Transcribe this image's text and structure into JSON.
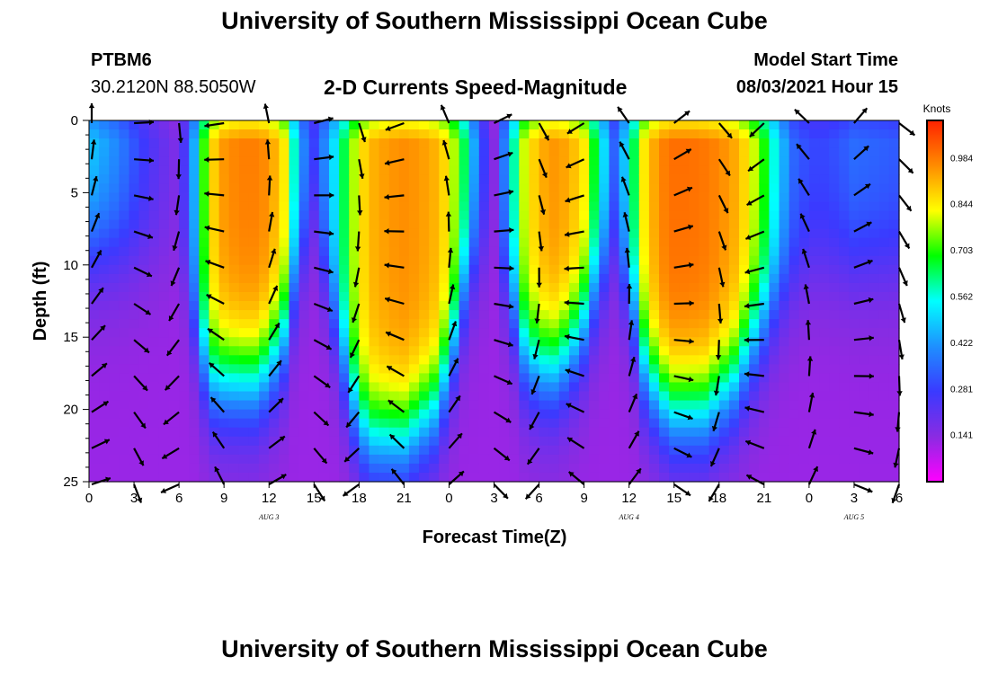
{
  "header": {
    "title": "University of Southern Mississippi Ocean Cube",
    "station_id": "PTBM6",
    "station_coords": "30.2120N  88.5050W",
    "plot_title": "2-D Currents Speed-Magnitude",
    "model_start_label": "Model Start Time",
    "model_start_value": "08/03/2021 Hour 15"
  },
  "footer": {
    "title": "University of Southern Mississippi Ocean Cube"
  },
  "chart_data": {
    "type": "heatmap",
    "title": "2-D Currents Speed-Magnitude",
    "xlabel": "Forecast Time(Z)",
    "ylabel": "Depth (ft)",
    "x_ticks": [
      "0",
      "3",
      "6",
      "9",
      "12",
      "15",
      "18",
      "21",
      "0",
      "3",
      "6",
      "9",
      "12",
      "15",
      "18",
      "21",
      "0",
      "3",
      "6"
    ],
    "x_range_hours": [
      0,
      54
    ],
    "date_labels": [
      {
        "label": "AUG 3",
        "hour": 12
      },
      {
        "label": "AUG 4",
        "hour": 36
      },
      {
        "label": "AUG 5",
        "hour": 51
      }
    ],
    "y_ticks": [
      "0",
      "5",
      "10",
      "15",
      "20",
      "25"
    ],
    "y_range_ft": [
      0,
      25
    ],
    "colorbar": {
      "unit": "Knots",
      "range": [
        0,
        1.1
      ],
      "tick_labels": [
        "0.984",
        "0.844",
        "0.703",
        "0.562",
        "0.422",
        "0.281",
        "0.141"
      ],
      "tick_values": [
        0.984,
        0.844,
        0.703,
        0.562,
        0.422,
        0.281,
        0.141
      ],
      "colors": [
        "#ff00ff",
        "#8a2be2",
        "#3a3aff",
        "#1e90ff",
        "#00ffff",
        "#00ff00",
        "#ffff00",
        "#ff8c00",
        "#ff2200"
      ]
    },
    "time_profile_hours": [
      0,
      2,
      4,
      6,
      7,
      8,
      9,
      10,
      11,
      12,
      13,
      14,
      15,
      16,
      17,
      18,
      19,
      20,
      21,
      22,
      23,
      24,
      25,
      26,
      27,
      28,
      29,
      30,
      31,
      32,
      33,
      34,
      35,
      36,
      37,
      38,
      39,
      40,
      41,
      42,
      43,
      44,
      45,
      46,
      47,
      48,
      49,
      50,
      51,
      52,
      53,
      54
    ],
    "surface_speed_knots": [
      0.5,
      0.4,
      0.25,
      0.15,
      0.45,
      0.85,
      0.95,
      0.98,
      0.98,
      0.96,
      0.85,
      0.45,
      0.3,
      0.45,
      0.65,
      0.85,
      0.92,
      0.95,
      0.96,
      0.95,
      0.92,
      0.85,
      0.65,
      0.35,
      0.15,
      0.5,
      0.8,
      0.92,
      0.95,
      0.93,
      0.85,
      0.6,
      0.35,
      0.55,
      0.85,
      0.97,
      1.0,
      1.0,
      0.99,
      0.97,
      0.93,
      0.85,
      0.7,
      0.5,
      0.35,
      0.3,
      0.3,
      0.32,
      0.36,
      0.35,
      0.34,
      0.33
    ],
    "decay_depth_ft": [
      9,
      9,
      9,
      9,
      14,
      18,
      18,
      18,
      18,
      17,
      15,
      10,
      7,
      12,
      17,
      21,
      22,
      22,
      22,
      21,
      20,
      17,
      12,
      9,
      9,
      12,
      16,
      17,
      17,
      16,
      14,
      11,
      9,
      12,
      17,
      19,
      20,
      20,
      20,
      19,
      18,
      16,
      14,
      12,
      11,
      10,
      10,
      10,
      10,
      10,
      10,
      10
    ],
    "vectors_note": "current direction arrows on a 3-hour by 2.5-ft grid"
  }
}
